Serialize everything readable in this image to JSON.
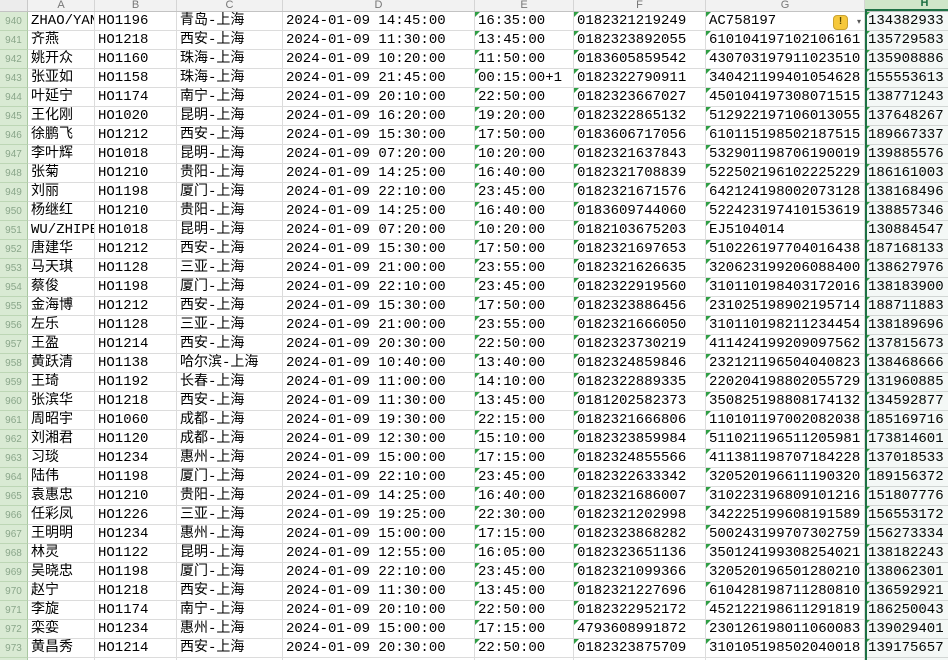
{
  "sheet": {
    "column_letters": [
      "A",
      "B",
      "C",
      "D",
      "E",
      "F",
      "G",
      "H"
    ],
    "selected_column": "H",
    "first_visible_row": 940,
    "last_visible_row": 974
  },
  "error_button": {
    "exclamation": "!",
    "dropdown": "▾"
  },
  "colors": {
    "selection_green": "#1e7145",
    "triangle_green": "#2f9e44",
    "gutter_green": "#d9ead3",
    "warning_yellow": "#f6c83c"
  },
  "rows": [
    {
      "n": "940",
      "name": "ZHAO/YAN",
      "flight": "HO1196",
      "route": "青岛-上海",
      "depart": "2024-01-09 14:45:00",
      "arrive": "16:35:00",
      "ticket": "0182321219249",
      "id": "AC758197",
      "phone": "134382933",
      "error_indicator": true
    },
    {
      "n": "941",
      "name": "齐燕",
      "flight": "HO1218",
      "route": "西安-上海",
      "depart": "2024-01-09 11:30:00",
      "arrive": "13:45:00",
      "ticket": "0182323892055",
      "id": "610104197102106161",
      "phone": "135729583"
    },
    {
      "n": "942",
      "name": "姚开众",
      "flight": "HO1160",
      "route": "珠海-上海",
      "depart": "2024-01-09 10:20:00",
      "arrive": "11:50:00",
      "ticket": "0183605859542",
      "id": "430703197911023510",
      "phone": "135908886"
    },
    {
      "n": "943",
      "name": "张亚如",
      "flight": "HO1158",
      "route": "珠海-上海",
      "depart": "2024-01-09 21:45:00",
      "arrive": "00:15:00+1",
      "ticket": "0182322790911",
      "id": "340421199401054628",
      "phone": "155553613"
    },
    {
      "n": "944",
      "name": "叶延宁",
      "flight": "HO1174",
      "route": "南宁-上海",
      "depart": "2024-01-09 20:10:00",
      "arrive": "22:50:00",
      "ticket": "0182323667027",
      "id": "450104197308071515",
      "phone": "138771243"
    },
    {
      "n": "945",
      "name": "王化刚",
      "flight": "HO1020",
      "route": "昆明-上海",
      "depart": "2024-01-09 16:20:00",
      "arrive": "19:20:00",
      "ticket": "0182322865132",
      "id": "512922197106013055",
      "phone": "137648267"
    },
    {
      "n": "946",
      "name": "徐鹏飞",
      "flight": "HO1212",
      "route": "西安-上海",
      "depart": "2024-01-09 15:30:00",
      "arrive": "17:50:00",
      "ticket": "0183606717056",
      "id": "610115198502187515",
      "phone": "189667337"
    },
    {
      "n": "947",
      "name": "李叶辉",
      "flight": "HO1018",
      "route": "昆明-上海",
      "depart": "2024-01-09 07:20:00",
      "arrive": "10:20:00",
      "ticket": "0182321637843",
      "id": "532901198706190019",
      "phone": "139885576"
    },
    {
      "n": "948",
      "name": "张菊",
      "flight": "HO1210",
      "route": "贵阳-上海",
      "depart": "2024-01-09 14:25:00",
      "arrive": "16:40:00",
      "ticket": "0182321708839",
      "id": "522502196102225229",
      "phone": "186161003"
    },
    {
      "n": "949",
      "name": "刘丽",
      "flight": "HO1198",
      "route": "厦门-上海",
      "depart": "2024-01-09 22:10:00",
      "arrive": "23:45:00",
      "ticket": "0182321671576",
      "id": "642124198002073128",
      "phone": "138168496"
    },
    {
      "n": "950",
      "name": "杨继红",
      "flight": "HO1210",
      "route": "贵阳-上海",
      "depart": "2024-01-09 14:25:00",
      "arrive": "16:40:00",
      "ticket": "0183609744060",
      "id": "522423197410153619",
      "phone": "138857346"
    },
    {
      "n": "951",
      "name": "WU/ZHIPEN",
      "flight": "HO1018",
      "route": "昆明-上海",
      "depart": "2024-01-09 07:20:00",
      "arrive": "10:20:00",
      "ticket": "0182103675203",
      "id": "EJ5104014",
      "phone": "130884547"
    },
    {
      "n": "952",
      "name": "唐建华",
      "flight": "HO1212",
      "route": "西安-上海",
      "depart": "2024-01-09 15:30:00",
      "arrive": "17:50:00",
      "ticket": "0182321697653",
      "id": "510226197704016438",
      "phone": "187168133"
    },
    {
      "n": "953",
      "name": "马天琪",
      "flight": "HO1128",
      "route": "三亚-上海",
      "depart": "2024-01-09 21:00:00",
      "arrive": "23:55:00",
      "ticket": "0182321626635",
      "id": "320623199206088400",
      "phone": "138627976"
    },
    {
      "n": "954",
      "name": "蔡俊",
      "flight": "HO1198",
      "route": "厦门-上海",
      "depart": "2024-01-09 22:10:00",
      "arrive": "23:45:00",
      "ticket": "0182322919560",
      "id": "310110198403172016",
      "phone": "138183900"
    },
    {
      "n": "955",
      "name": "金海博",
      "flight": "HO1212",
      "route": "西安-上海",
      "depart": "2024-01-09 15:30:00",
      "arrive": "17:50:00",
      "ticket": "0182323886456",
      "id": "231025198902195714",
      "phone": "188711883"
    },
    {
      "n": "956",
      "name": "左乐",
      "flight": "HO1128",
      "route": "三亚-上海",
      "depart": "2024-01-09 21:00:00",
      "arrive": "23:55:00",
      "ticket": "0182321666050",
      "id": "310110198211234454",
      "phone": "138189696"
    },
    {
      "n": "957",
      "name": "王盈",
      "flight": "HO1214",
      "route": "西安-上海",
      "depart": "2024-01-09 20:30:00",
      "arrive": "22:50:00",
      "ticket": "0182323730219",
      "id": "411424199209097562",
      "phone": "137815673"
    },
    {
      "n": "958",
      "name": "黄跃清",
      "flight": "HO1138",
      "route": "哈尔滨-上海",
      "depart": "2024-01-09 10:40:00",
      "arrive": "13:40:00",
      "ticket": "0182324859846",
      "id": "232121196504040823",
      "phone": "138468666"
    },
    {
      "n": "959",
      "name": "王琦",
      "flight": "HO1192",
      "route": "长春-上海",
      "depart": "2024-01-09 11:00:00",
      "arrive": "14:10:00",
      "ticket": "0182322889335",
      "id": "220204198802055729",
      "phone": "131960885"
    },
    {
      "n": "960",
      "name": "张滨华",
      "flight": "HO1218",
      "route": "西安-上海",
      "depart": "2024-01-09 11:30:00",
      "arrive": "13:45:00",
      "ticket": "0181202582373",
      "id": "350825198808174132",
      "phone": "134592877"
    },
    {
      "n": "961",
      "name": "周昭宇",
      "flight": "HO1060",
      "route": "成都-上海",
      "depart": "2024-01-09 19:30:00",
      "arrive": "22:15:00",
      "ticket": "0182321666806",
      "id": "110101197002082038",
      "phone": "185169716"
    },
    {
      "n": "962",
      "name": "刘湘君",
      "flight": "HO1120",
      "route": "成都-上海",
      "depart": "2024-01-09 12:30:00",
      "arrive": "15:10:00",
      "ticket": "0182323859984",
      "id": "511021196511205981",
      "phone": "173814601"
    },
    {
      "n": "963",
      "name": "习琰",
      "flight": "HO1234",
      "route": "惠州-上海",
      "depart": "2024-01-09 15:00:00",
      "arrive": "17:15:00",
      "ticket": "0182324855566",
      "id": "411381198707184228",
      "phone": "137018533"
    },
    {
      "n": "964",
      "name": "陆伟",
      "flight": "HO1198",
      "route": "厦门-上海",
      "depart": "2024-01-09 22:10:00",
      "arrive": "23:45:00",
      "ticket": "0182322633342",
      "id": "320520196611190320",
      "phone": "189156372"
    },
    {
      "n": "965",
      "name": "袁惠忠",
      "flight": "HO1210",
      "route": "贵阳-上海",
      "depart": "2024-01-09 14:25:00",
      "arrive": "16:40:00",
      "ticket": "0182321686007",
      "id": "310223196809101216",
      "phone": "151807776"
    },
    {
      "n": "966",
      "name": "任彩凤",
      "flight": "HO1226",
      "route": "三亚-上海",
      "depart": "2024-01-09 19:25:00",
      "arrive": "22:30:00",
      "ticket": "0182321202998",
      "id": "342225199608191589",
      "phone": "156553172"
    },
    {
      "n": "967",
      "name": "王明明",
      "flight": "HO1234",
      "route": "惠州-上海",
      "depart": "2024-01-09 15:00:00",
      "arrive": "17:15:00",
      "ticket": "0182323868282",
      "id": "500243199707302759",
      "phone": "156273334"
    },
    {
      "n": "968",
      "name": "林灵",
      "flight": "HO1122",
      "route": "昆明-上海",
      "depart": "2024-01-09 12:55:00",
      "arrive": "16:05:00",
      "ticket": "0182323651136",
      "id": "350124199308254021",
      "phone": "138182243"
    },
    {
      "n": "969",
      "name": "吴晓忠",
      "flight": "HO1198",
      "route": "厦门-上海",
      "depart": "2024-01-09 22:10:00",
      "arrive": "23:45:00",
      "ticket": "0182321099366",
      "id": "320520196501280210",
      "phone": "138062301"
    },
    {
      "n": "970",
      "name": "赵宁",
      "flight": "HO1218",
      "route": "西安-上海",
      "depart": "2024-01-09 11:30:00",
      "arrive": "13:45:00",
      "ticket": "0182321227696",
      "id": "610428198711280810",
      "phone": "136592921"
    },
    {
      "n": "971",
      "name": "李旋",
      "flight": "HO1174",
      "route": "南宁-上海",
      "depart": "2024-01-09 20:10:00",
      "arrive": "22:50:00",
      "ticket": "0182322952172",
      "id": "452122198611291819",
      "phone": "186250043"
    },
    {
      "n": "972",
      "name": "栾娈",
      "flight": "HO1234",
      "route": "惠州-上海",
      "depart": "2024-01-09 15:00:00",
      "arrive": "17:15:00",
      "ticket": "4793608991872",
      "id": "230126198011060083",
      "phone": "139029401"
    },
    {
      "n": "973",
      "name": "黄昌秀",
      "flight": "HO1214",
      "route": "西安-上海",
      "depart": "2024-01-09 20:30:00",
      "arrive": "22:50:00",
      "ticket": "0182323875709",
      "id": "310105198502040018",
      "phone": "139175657"
    },
    {
      "n": "974",
      "name": "",
      "flight": "",
      "route": "",
      "depart": "",
      "arrive": "",
      "ticket": "",
      "id": "",
      "phone": ""
    }
  ]
}
